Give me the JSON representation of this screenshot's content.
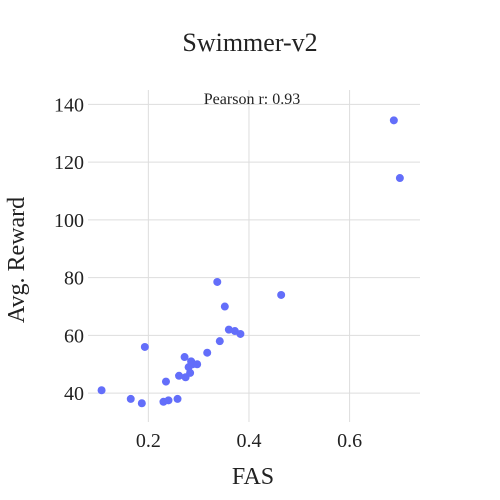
{
  "chart_data": {
    "type": "scatter",
    "title": "Swimmer-v2",
    "xlabel": "FAS",
    "ylabel": "Avg. Reward",
    "annotation": "Pearson r: 0.93",
    "xlim": [
      0.08,
      0.74
    ],
    "ylim": [
      30,
      145
    ],
    "x_ticks": [
      0.2,
      0.4,
      0.6
    ],
    "x_tick_labels": [
      "0.2",
      "0.4",
      "0.6"
    ],
    "y_ticks": [
      40,
      60,
      80,
      100,
      120,
      140
    ],
    "y_tick_labels": [
      "40",
      "60",
      "80",
      "100",
      "120",
      "140"
    ],
    "grid": true,
    "legend": "none",
    "point_color": "#636efa",
    "series": [
      {
        "x": [
          0.107,
          0.165,
          0.187,
          0.193,
          0.23,
          0.235,
          0.24,
          0.258,
          0.261,
          0.272,
          0.274,
          0.28,
          0.283,
          0.285,
          0.288,
          0.297,
          0.317,
          0.337,
          0.342,
          0.352,
          0.36,
          0.372,
          0.383,
          0.464,
          0.688,
          0.7
        ],
        "y": [
          41,
          38,
          36.5,
          56,
          37,
          44,
          37.5,
          38,
          46,
          52.5,
          45.5,
          49,
          47,
          51,
          50,
          50,
          54,
          78.5,
          58,
          70,
          62,
          61.5,
          60.5,
          74,
          134.5,
          114.5
        ]
      }
    ]
  }
}
